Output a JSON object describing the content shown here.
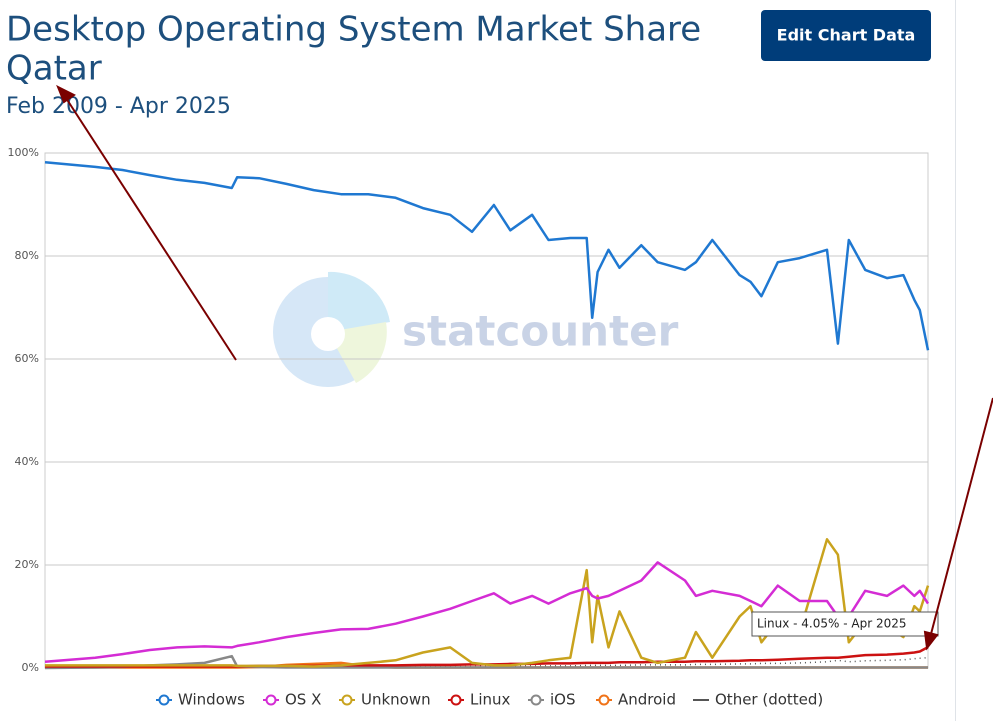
{
  "button": "Edit Chart Data",
  "chart_data": {
    "type": "line",
    "title": [
      "Desktop Operating System Market Share",
      "Qatar"
    ],
    "subtitle": "Feb 2009 - Apr 2025",
    "watermark": "statcounter",
    "annotation": "Linux - 4.05% - Apr 2025",
    "x": [
      2009.08,
      2010.0,
      2010.5,
      2011.0,
      2011.5,
      2012.0,
      2012.5,
      2012.6,
      2013.0,
      2013.5,
      2014.0,
      2014.5,
      2015.0,
      2015.5,
      2016.0,
      2016.5,
      2016.9,
      2017.3,
      2017.6,
      2018.0,
      2018.3,
      2018.7,
      2019.0,
      2019.1,
      2019.2,
      2019.4,
      2019.6,
      2020.0,
      2020.3,
      2020.8,
      2021.0,
      2021.3,
      2021.8,
      2022.0,
      2022.2,
      2022.5,
      2022.9,
      2023.4,
      2023.6,
      2023.8,
      2024.1,
      2024.5,
      2024.8,
      2025.0,
      2025.1,
      2025.25
    ],
    "xlim": [
      2009.08,
      2025.25
    ],
    "ylim": [
      0,
      100
    ],
    "yticks": [
      {
        "value": 0,
        "label": "0%"
      },
      {
        "value": 20,
        "label": "20%"
      },
      {
        "value": 40,
        "label": "40%"
      },
      {
        "value": 60,
        "label": "60%"
      },
      {
        "value": 80,
        "label": "80%"
      },
      {
        "value": 100,
        "label": "100%"
      }
    ],
    "grid": true,
    "legend": "bottom",
    "series": [
      {
        "name": "Windows",
        "color": "#1f78d1",
        "values": [
          98.2,
          97.3,
          96.7,
          95.7,
          94.8,
          94.2,
          93.2,
          95.3,
          95.1,
          94.0,
          92.8,
          92.0,
          92.0,
          91.3,
          89.3,
          88.0,
          84.7,
          89.9,
          85.0,
          88.0,
          83.1,
          83.5,
          83.5,
          68.0,
          76.9,
          81.2,
          77.7,
          82.1,
          78.8,
          77.3,
          78.8,
          83.1,
          76.3,
          75.0,
          72.2,
          78.8,
          79.6,
          81.2,
          63.0,
          83.1,
          77.3,
          75.7,
          76.3,
          71.5,
          69.5,
          61.7
        ]
      },
      {
        "name": "OS X",
        "color": "#d42cd4",
        "values": [
          1.2,
          2.0,
          2.7,
          3.5,
          4.0,
          4.2,
          4.0,
          4.3,
          5.0,
          6.0,
          6.8,
          7.5,
          7.6,
          8.6,
          10.0,
          11.5,
          13.0,
          14.5,
          12.5,
          14.0,
          12.5,
          14.5,
          15.5,
          14.0,
          13.5,
          14.0,
          15.0,
          17.0,
          20.5,
          17.0,
          14.0,
          15.0,
          14.0,
          13.0,
          12.0,
          16.0,
          13.0,
          13.0,
          10.0,
          10.0,
          15.0,
          14.0,
          16.0,
          14.0,
          15.0,
          12.5
        ]
      },
      {
        "name": "Unknown",
        "color": "#c9a31e",
        "values": [
          0.5,
          0.5,
          0.5,
          0.5,
          0.5,
          0.5,
          0.5,
          0.4,
          0.4,
          0.4,
          0.3,
          0.5,
          1.0,
          1.5,
          3.0,
          4.0,
          1.0,
          0.5,
          0.5,
          1.0,
          1.5,
          2.0,
          19.0,
          5.0,
          14.0,
          4.0,
          11.0,
          2.0,
          1.0,
          2.0,
          7.0,
          2.0,
          10.0,
          12.0,
          5.0,
          9.0,
          7.0,
          25.0,
          22.0,
          5.0,
          9.0,
          8.0,
          6.0,
          12.0,
          11.0,
          16.0
        ]
      },
      {
        "name": "Linux",
        "color": "#cc1111",
        "values": [
          0.3,
          0.3,
          0.3,
          0.3,
          0.3,
          0.3,
          0.3,
          0.3,
          0.4,
          0.4,
          0.4,
          0.5,
          0.5,
          0.5,
          0.6,
          0.6,
          0.7,
          0.7,
          0.8,
          0.8,
          0.9,
          0.9,
          1.0,
          1.0,
          1.0,
          1.0,
          1.1,
          1.1,
          1.2,
          1.2,
          1.3,
          1.3,
          1.4,
          1.5,
          1.5,
          1.6,
          1.8,
          2.0,
          2.0,
          2.2,
          2.5,
          2.6,
          2.8,
          3.0,
          3.2,
          4.05
        ]
      },
      {
        "name": "iOS",
        "color": "#888888",
        "values": [
          0.0,
          0.1,
          0.2,
          0.5,
          0.7,
          1.0,
          2.3,
          0.3,
          0.2,
          0.1,
          0.1,
          0.1,
          0.1,
          0.1,
          0.1,
          0.1,
          0.1,
          0.1,
          0.1,
          0.1,
          0.1,
          0.1,
          0.1,
          0.1,
          0.1,
          0.1,
          0.1,
          0.1,
          0.1,
          0.1,
          0.1,
          0.1,
          0.1,
          0.1,
          0.1,
          0.1,
          0.1,
          0.1,
          0.1,
          0.1,
          0.1,
          0.1,
          0.1,
          0.1,
          0.1,
          0.1
        ]
      },
      {
        "name": "Android",
        "color": "#f07318",
        "values": [
          0.1,
          0.1,
          0.1,
          0.1,
          0.1,
          0.1,
          0.1,
          0.1,
          0.2,
          0.6,
          0.8,
          1.0,
          0.3,
          0.1,
          0.1,
          0.1,
          0.1,
          0.1,
          0.1,
          0.1,
          0.1,
          0.1,
          0.1,
          0.1,
          0.1,
          0.1,
          0.1,
          0.1,
          0.1,
          0.1,
          0.1,
          0.1,
          0.1,
          0.1,
          0.1,
          0.1,
          0.1,
          0.1,
          0.1,
          0.1,
          0.1,
          0.1,
          0.1,
          0.1,
          0.1,
          0.1
        ]
      },
      {
        "name": "Other (dotted)",
        "color": "#555555",
        "dotted": true,
        "values": [
          0.3,
          0.3,
          0.3,
          0.3,
          0.3,
          0.3,
          0.3,
          0.3,
          0.3,
          0.3,
          0.3,
          0.3,
          0.3,
          0.3,
          0.3,
          0.3,
          0.3,
          0.4,
          0.4,
          0.4,
          0.4,
          0.4,
          0.5,
          0.5,
          0.5,
          0.5,
          0.5,
          0.6,
          0.6,
          0.6,
          0.7,
          0.7,
          0.8,
          0.8,
          0.9,
          0.9,
          1.0,
          1.2,
          1.5,
          1.2,
          1.4,
          1.5,
          1.6,
          1.8,
          1.9,
          2.0
        ]
      }
    ]
  }
}
